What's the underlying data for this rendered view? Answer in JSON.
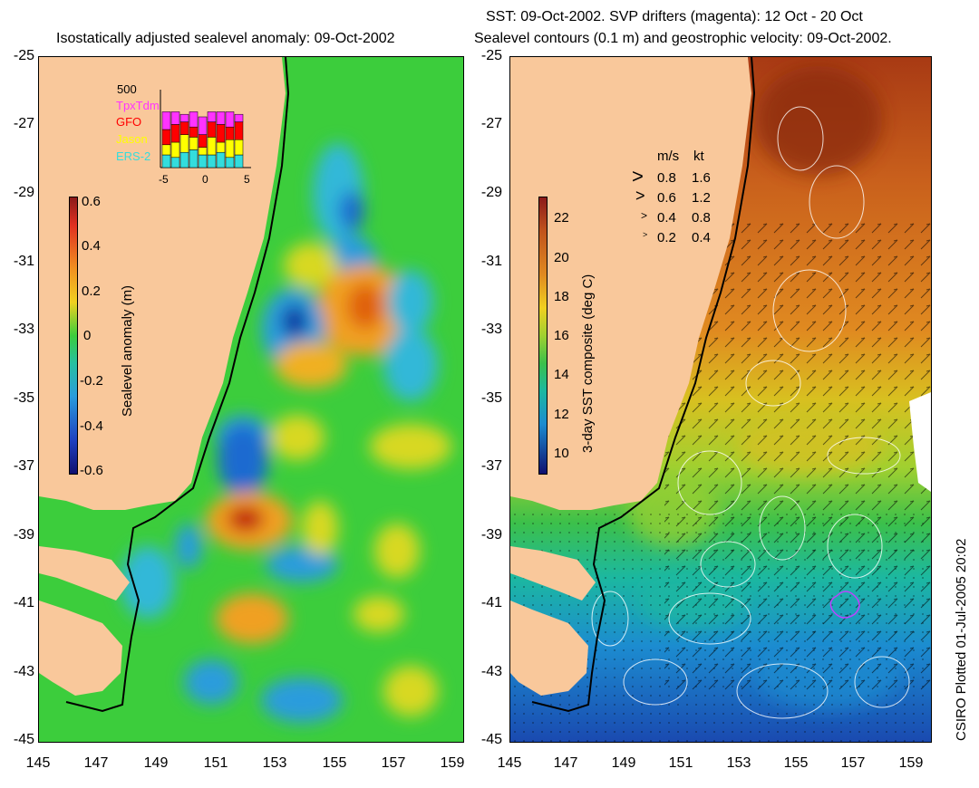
{
  "left_title": "Isostatically adjusted sealevel anomaly: 09-Oct-2002",
  "right_title_line1": "SST: 09-Oct-2002. SVP drifters (magenta): 12 Oct - 20 Oct",
  "right_title_line2": "Sealevel contours (0.1 m) and geostrophic velocity: 09-Oct-2002.",
  "y_ticks": [
    "-25",
    "-27",
    "-29",
    "-31",
    "-33",
    "-35",
    "-37",
    "-39",
    "-41",
    "-43",
    "-45"
  ],
  "x_ticks": [
    "145",
    "147",
    "149",
    "151",
    "153",
    "155",
    "157",
    "159"
  ],
  "left_colorbar": {
    "label": "Sealevel anomaly (m)",
    "ticks": [
      "0.6",
      "0.4",
      "0.2",
      "0",
      "-0.2",
      "-0.4",
      "-0.6"
    ]
  },
  "right_colorbar": {
    "label": "3-day SST composite (deg C)",
    "ticks": [
      "22",
      "20",
      "18",
      "16",
      "14",
      "12",
      "10"
    ]
  },
  "velocity_legend": {
    "header_ms": "m/s",
    "header_kt": "kt",
    "rows": [
      {
        "ms": "0.8",
        "kt": "1.6"
      },
      {
        "ms": "0.6",
        "kt": "1.2"
      },
      {
        "ms": "0.4",
        "kt": "0.8"
      },
      {
        "ms": "0.2",
        "kt": "0.4"
      }
    ]
  },
  "satellite_inset": {
    "ymax_label": "500",
    "x_ticks": [
      "-5",
      "0",
      "5"
    ],
    "series": [
      {
        "name": "TpxTdm",
        "color": "#ff33ff"
      },
      {
        "name": "GFO",
        "color": "#ff0000"
      },
      {
        "name": "Jason",
        "color": "#ffff00"
      },
      {
        "name": "ERS-2",
        "color": "#33dddd"
      }
    ]
  },
  "credit": "CSIRO Plotted 01-Jul-2005 20:02",
  "colors": {
    "land": "#f9c89b",
    "anomaly_background": "#3ccd3c",
    "sst_warm": "#c0531c",
    "sst_cold": "#1e63c0",
    "drifter": "#c040ff"
  }
}
